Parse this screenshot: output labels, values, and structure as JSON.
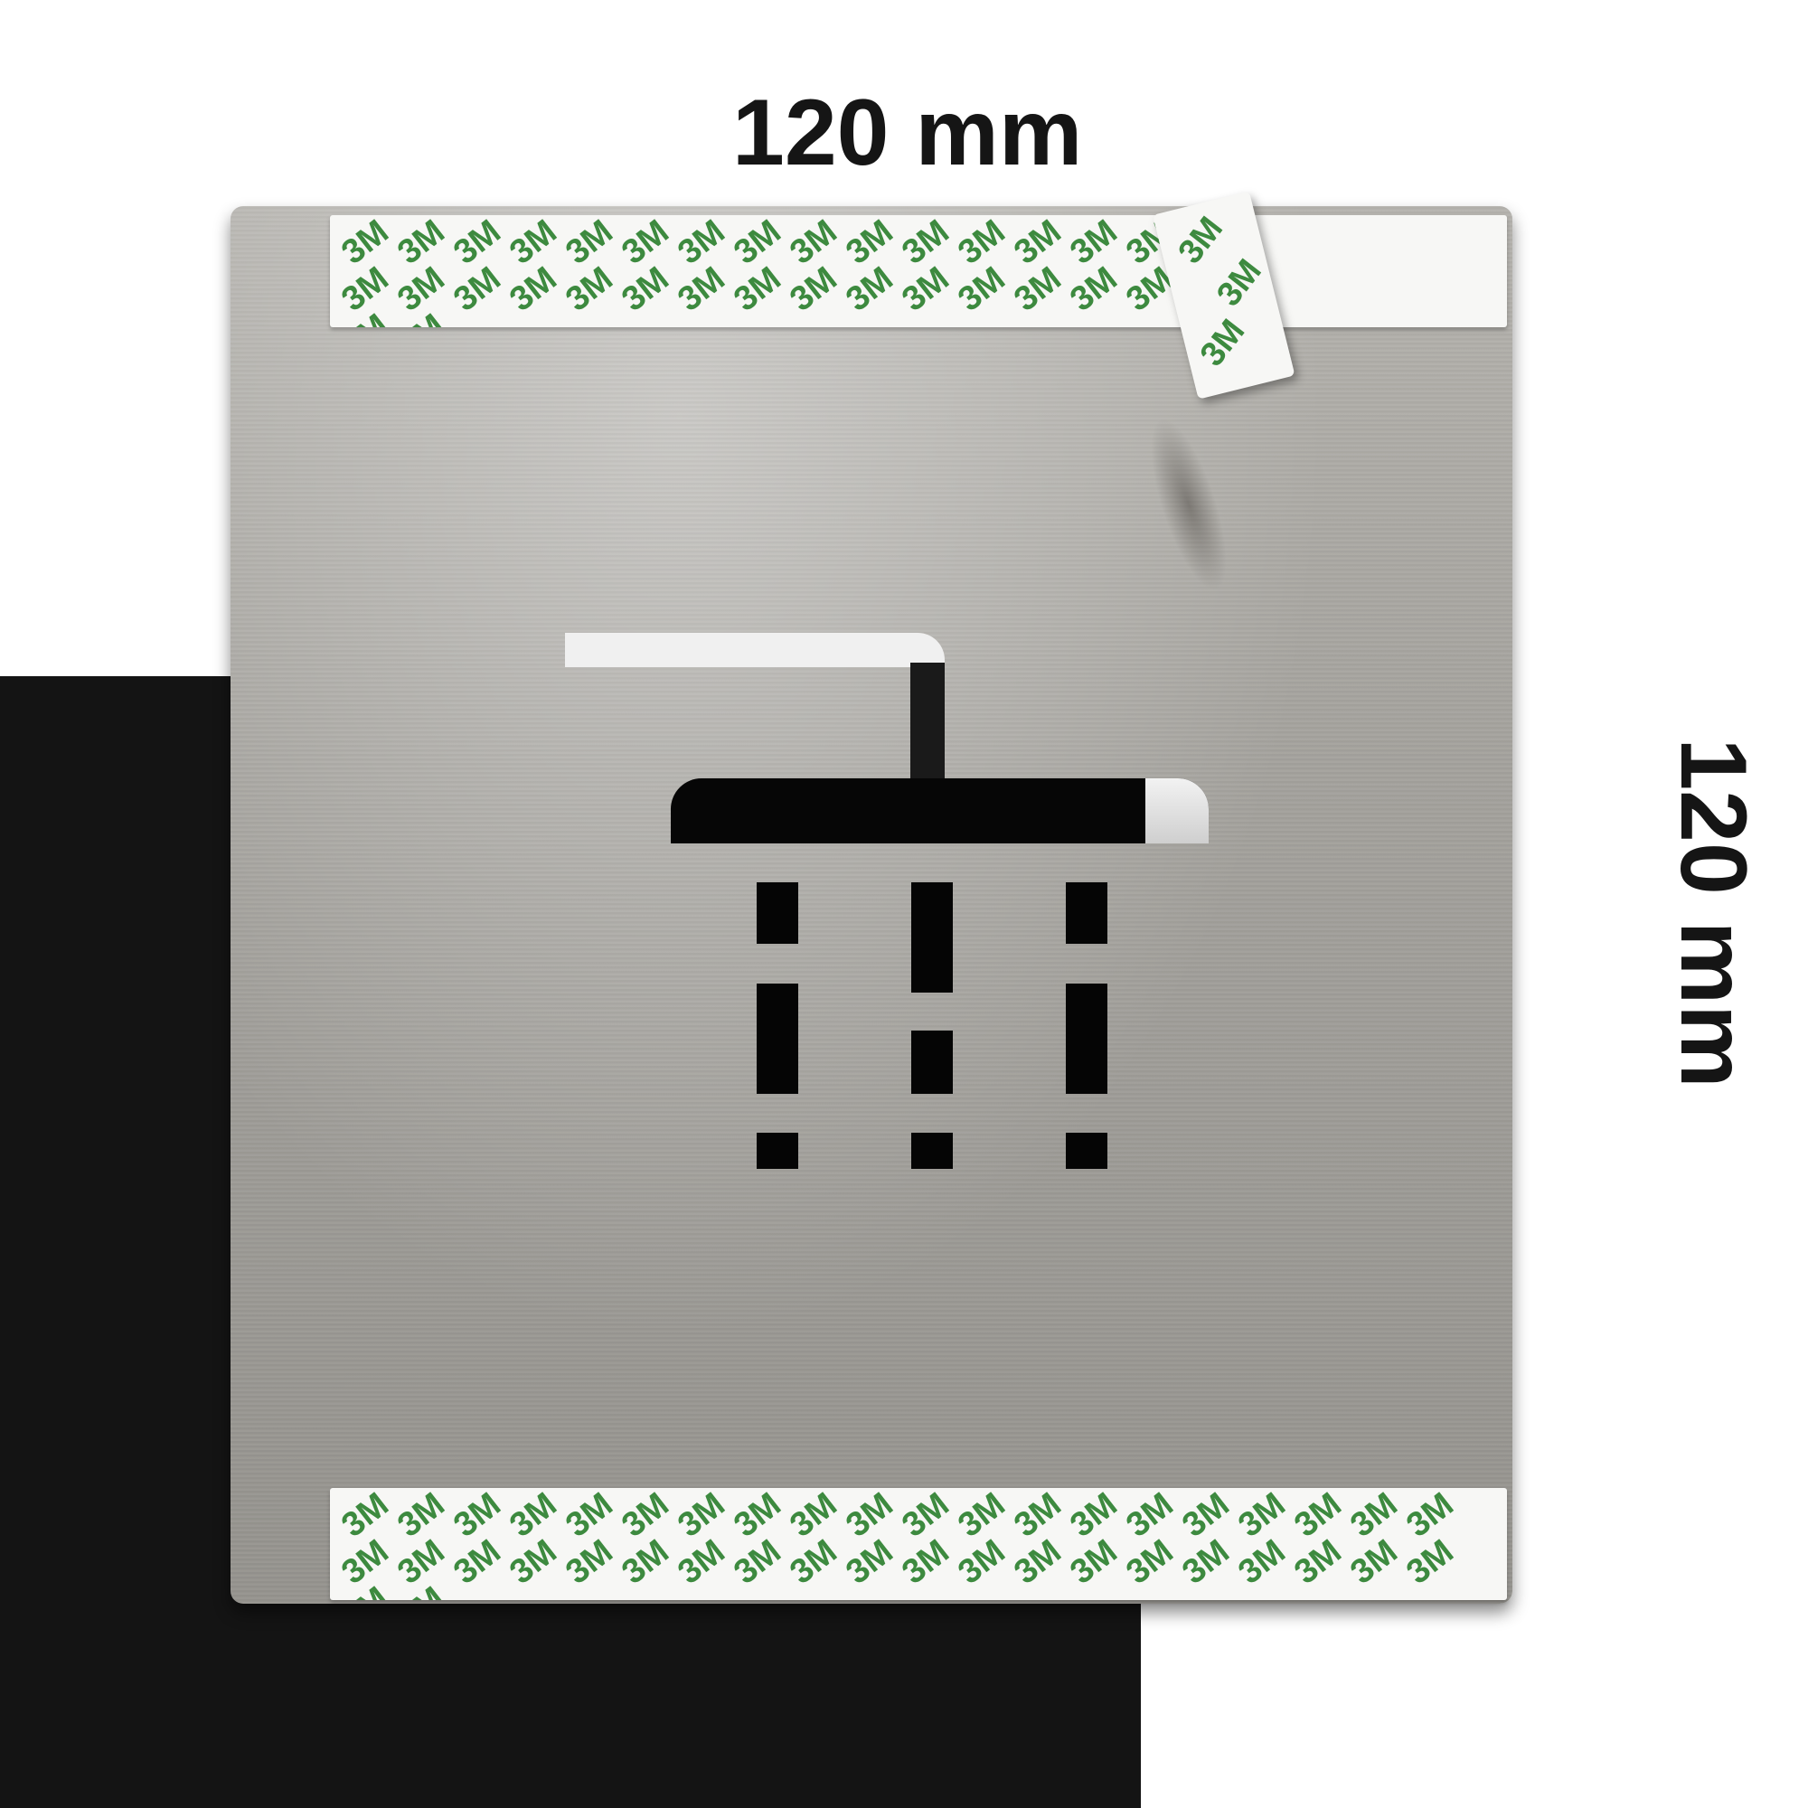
{
  "dimensions": {
    "width_label": "120 mm",
    "height_label": "120 mm"
  },
  "plate": {
    "material_color": "#a8a6a1",
    "symbol": "shower-icon"
  },
  "adhesive_tape": {
    "brand_mark": "3M",
    "mark_color": "#3d8a3f"
  },
  "background": {
    "dark_color": "#141414",
    "light_color": "#ffffff"
  }
}
